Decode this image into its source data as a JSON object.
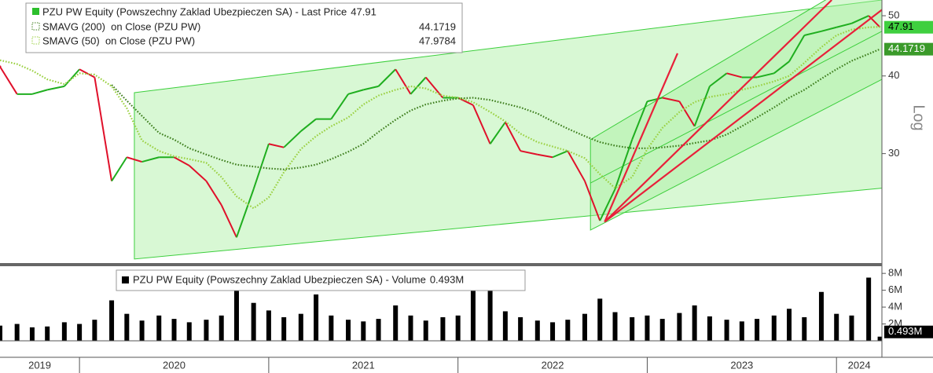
{
  "chart_data": [
    {
      "type": "line",
      "log_scale": true,
      "log_label": "Log",
      "xlim": [
        2019.58,
        2024.24
      ],
      "ylim": [
        20,
        53
      ],
      "yticks": [
        30,
        40,
        50
      ],
      "x": [
        2019.58,
        2019.67,
        2019.75,
        2019.83,
        2019.92,
        2020.0,
        2020.08,
        2020.17,
        2020.25,
        2020.33,
        2020.42,
        2020.5,
        2020.58,
        2020.67,
        2020.75,
        2020.83,
        2020.92,
        2021.0,
        2021.08,
        2021.17,
        2021.25,
        2021.33,
        2021.42,
        2021.5,
        2021.58,
        2021.67,
        2021.75,
        2021.83,
        2021.92,
        2022.0,
        2022.08,
        2022.17,
        2022.25,
        2022.33,
        2022.42,
        2022.5,
        2022.58,
        2022.67,
        2022.75,
        2022.83,
        2022.92,
        2023.0,
        2023.08,
        2023.17,
        2023.25,
        2023.33,
        2023.42,
        2023.5,
        2023.58,
        2023.67,
        2023.75,
        2023.83,
        2023.92,
        2024.0,
        2024.08,
        2024.17,
        2024.23
      ],
      "series": [
        {
          "name": "PZU PW Equity (Powszechny Zaklad Ubezpieczen SA) - Last Price",
          "up_color": "#1fae1f",
          "down_color": "#e0102a",
          "tag_color": "#3fcf3f",
          "values": [
            41.4,
            37.4,
            37.4,
            38.0,
            38.5,
            41.0,
            39.8,
            27.1,
            29.6,
            29.1,
            29.6,
            29.6,
            28.7,
            27.1,
            24.8,
            22.0,
            26.3,
            31.1,
            30.7,
            32.6,
            34.1,
            34.1,
            37.4,
            38.0,
            38.5,
            41.0,
            37.4,
            39.8,
            36.9,
            36.9,
            35.9,
            31.1,
            33.7,
            30.3,
            29.9,
            29.6,
            30.3,
            27.1,
            23.4,
            26.3,
            31.6,
            36.4,
            36.9,
            36.4,
            33.2,
            38.5,
            40.4,
            39.8,
            39.8,
            40.4,
            42.2,
            46.5,
            47.2,
            47.9,
            48.6,
            50.0,
            47.91
          ]
        },
        {
          "name": "SMAVG (200)  on Close (PZU PW)",
          "color": "#3f7f1f",
          "line_style": "dotted",
          "values": [
            null,
            null,
            null,
            null,
            null,
            null,
            null,
            38.7,
            36.5,
            34.5,
            32.4,
            31.6,
            30.6,
            29.9,
            29.3,
            28.8,
            28.6,
            28.4,
            28.3,
            28.5,
            28.8,
            29.4,
            30.2,
            31.1,
            32.5,
            34.0,
            35.2,
            36.0,
            36.5,
            36.8,
            36.9,
            36.6,
            36.1,
            35.6,
            34.8,
            33.8,
            32.9,
            32.0,
            31.3,
            30.9,
            30.6,
            30.6,
            30.7,
            30.9,
            31.2,
            31.5,
            32.2,
            33.2,
            34.3,
            35.6,
            36.9,
            38.0,
            39.6,
            41.0,
            42.3,
            43.4,
            44.1719
          ]
        },
        {
          "name": "SMAVG (50)  on Close (PZU PW)",
          "color": "#9ad040",
          "line_style": "dotted",
          "values": [
            42.4,
            41.8,
            40.8,
            39.5,
            38.8,
            40.4,
            40.2,
            38.5,
            35.5,
            31.5,
            30.3,
            29.7,
            29.4,
            29.0,
            27.5,
            25.6,
            24.5,
            25.5,
            28.0,
            30.5,
            32.0,
            33.2,
            34.3,
            36.0,
            37.2,
            38.0,
            38.5,
            38.2,
            37.2,
            36.9,
            36.3,
            35.0,
            33.8,
            32.3,
            31.3,
            30.8,
            30.3,
            29.5,
            27.8,
            26.4,
            27.5,
            30.5,
            33.0,
            35.0,
            36.3,
            37.0,
            37.4,
            38.0,
            38.5,
            39.2,
            40.0,
            42.0,
            44.5,
            46.5,
            47.5,
            47.9,
            47.9784
          ]
        }
      ],
      "channel_color": "#a8f0a0",
      "channel_line_color": "#3ccf3c",
      "channels": [
        {
          "x": [
            2020.29,
            2024.24
          ],
          "upper": [
            37.6,
            53
          ],
          "lower": [
            20.3,
            26.4
          ]
        },
        {
          "x": [
            2022.7,
            2024.24
          ],
          "upper": [
            31.6,
            60
          ],
          "lower": [
            22.6,
            39.5
          ],
          "middle": [
            26.9,
            47.2
          ]
        }
      ],
      "trendline_color": "#e8203a",
      "trendlines": [
        {
          "x": [
            2022.775,
            2023.16
          ],
          "values": [
            23.3,
            43.5
          ]
        },
        {
          "x": [
            2022.775,
            2023.975
          ],
          "values": [
            23.3,
            53
          ]
        },
        {
          "x": [
            2022.775,
            2024.24
          ],
          "values": [
            23.3,
            51.1
          ]
        }
      ]
    },
    {
      "type": "bar",
      "xlim": [
        2019.58,
        2024.24
      ],
      "ylim": [
        0,
        8760000
      ],
      "yticks": [
        {
          "value": 2000000,
          "label": "2M"
        },
        {
          "value": 4000000,
          "label": "4M"
        },
        {
          "value": 6000000,
          "label": "6M"
        },
        {
          "value": 8000000,
          "label": "8M"
        }
      ],
      "xticks": [
        2019,
        2020,
        2021,
        2022,
        2023,
        2024
      ],
      "x": [
        2019.58,
        2019.67,
        2019.75,
        2019.83,
        2019.92,
        2020.0,
        2020.08,
        2020.17,
        2020.25,
        2020.33,
        2020.42,
        2020.5,
        2020.58,
        2020.67,
        2020.75,
        2020.83,
        2020.92,
        2021.0,
        2021.08,
        2021.17,
        2021.25,
        2021.33,
        2021.42,
        2021.5,
        2021.58,
        2021.67,
        2021.75,
        2021.83,
        2021.92,
        2022.0,
        2022.08,
        2022.17,
        2022.25,
        2022.33,
        2022.42,
        2022.5,
        2022.58,
        2022.67,
        2022.75,
        2022.83,
        2022.92,
        2023.0,
        2023.08,
        2023.17,
        2023.25,
        2023.33,
        2023.42,
        2023.5,
        2023.58,
        2023.67,
        2023.75,
        2023.83,
        2023.92,
        2024.0,
        2024.08,
        2024.17,
        2024.23
      ],
      "series": [
        {
          "name": "PZU PW Equity (Powszechny Zaklad Ubezpieczen SA) - Volume",
          "color": "#000000",
          "values": [
            1800000,
            2000000,
            1600000,
            1700000,
            2200000,
            2000000,
            2500000,
            4800000,
            3200000,
            2400000,
            3000000,
            2600000,
            2200000,
            2500000,
            3000000,
            6000000,
            4500000,
            3600000,
            2800000,
            3200000,
            5500000,
            3000000,
            2500000,
            2300000,
            2600000,
            4200000,
            3000000,
            2400000,
            2800000,
            3000000,
            6800000,
            7000000,
            3500000,
            2800000,
            2400000,
            2200000,
            2500000,
            3200000,
            5000000,
            3400000,
            2800000,
            3000000,
            2600000,
            3300000,
            4200000,
            2900000,
            2500000,
            2300000,
            2600000,
            3000000,
            3800000,
            2800000,
            5800000,
            3200000,
            3000000,
            7500000,
            493000
          ],
          "value_labels": [
            null,
            null,
            null,
            null,
            null,
            null,
            null,
            null,
            null,
            null,
            null,
            null,
            null,
            null,
            null,
            null,
            null,
            null,
            null,
            null,
            null,
            null,
            null,
            null,
            null,
            null,
            null,
            null,
            null,
            null,
            null,
            null,
            null,
            null,
            null,
            null,
            null,
            null,
            null,
            null,
            null,
            null,
            null,
            null,
            null,
            null,
            null,
            null,
            null,
            null,
            null,
            null,
            null,
            null,
            null,
            null,
            "0.493M"
          ]
        }
      ]
    }
  ]
}
